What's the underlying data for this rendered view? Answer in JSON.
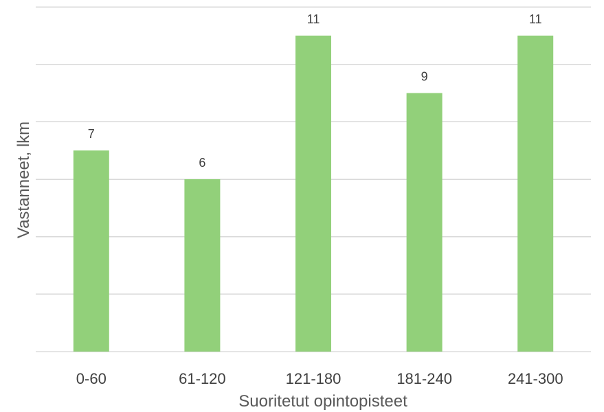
{
  "chart_data": {
    "type": "bar",
    "categories": [
      "0-60",
      "61-120",
      "121-180",
      "181-240",
      "241-300"
    ],
    "values": [
      7,
      6,
      11,
      9,
      11
    ],
    "data_labels": [
      "7",
      "6",
      "11",
      "9",
      "11"
    ],
    "title": "",
    "xlabel": "Suoritetut opintopisteet",
    "ylabel": "Vastanneet, lkm",
    "ylim": [
      0,
      12
    ],
    "y_tick_labels_shown": false,
    "grid": true,
    "legend": "none",
    "colors": {
      "bar": "#92d07a",
      "grid": "#d9d9d9",
      "text": "#404040",
      "axis_title": "#595959"
    }
  }
}
